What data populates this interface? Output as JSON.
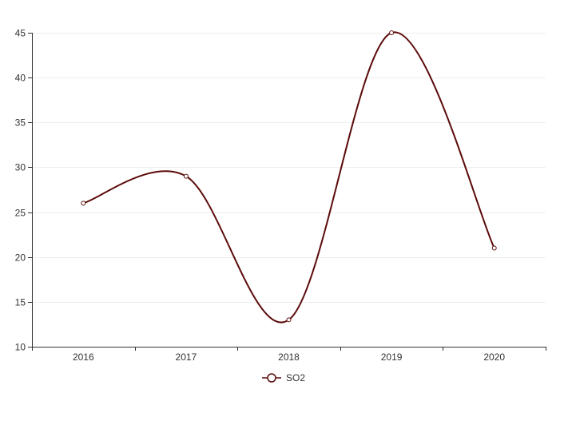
{
  "chart_data": {
    "type": "line",
    "smooth": true,
    "categories": [
      "2016",
      "2017",
      "2018",
      "2019",
      "2020"
    ],
    "series": [
      {
        "name": "SO2",
        "values": [
          26,
          29,
          13,
          45,
          21
        ],
        "color": "#5c0a0a"
      }
    ],
    "ylim": [
      10,
      45
    ],
    "yticks": [
      10,
      15,
      20,
      25,
      30,
      35,
      40,
      45
    ],
    "ytick_labels": [
      "10",
      "15",
      "20",
      "25",
      "30",
      "35",
      "40",
      "45"
    ],
    "grid": true,
    "legend": "bottom-center",
    "axis_color": "#333333",
    "grid_color": "#eeeeee"
  }
}
